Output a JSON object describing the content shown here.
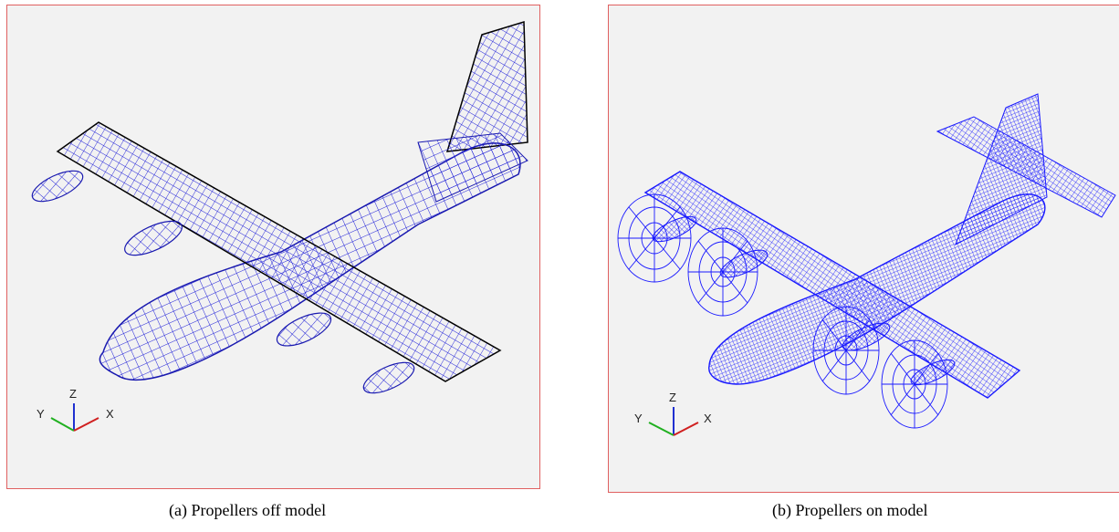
{
  "figure": {
    "panels": [
      {
        "caption": "(a) Propellers off model",
        "axes": {
          "z": "Z",
          "y": "Y",
          "x": "X"
        },
        "mesh_color": "#2020d8",
        "edge_color": "#000000"
      },
      {
        "caption": "(b) Propellers on model",
        "axes": {
          "z": "Z",
          "y": "Y",
          "x": "X"
        },
        "mesh_color": "#1a1aff"
      }
    ],
    "frame_color": "#e06060",
    "background_color": "#f2f2f2",
    "axis_colors": {
      "z": "#2030d0",
      "y": "#20b020",
      "x": "#d02020"
    }
  }
}
